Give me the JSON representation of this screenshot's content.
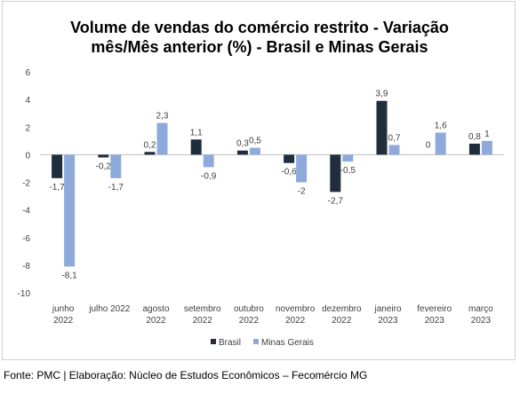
{
  "chart_data": {
    "type": "bar",
    "title_line1": "Volume de vendas do comércio restrito - Variação",
    "title_line2": "mês/Mês anterior (%) - Brasil e Minas Gerais",
    "categories": [
      [
        "junho",
        "2022"
      ],
      [
        "julho 2022"
      ],
      [
        "agosto",
        "2022"
      ],
      [
        "setembro",
        "2022"
      ],
      [
        "outubro",
        "2022"
      ],
      [
        "novembro",
        "2022"
      ],
      [
        "dezembro",
        "2022"
      ],
      [
        "janeiro",
        "2023"
      ],
      [
        "fevereiro",
        "2023"
      ],
      [
        "março",
        "2023"
      ]
    ],
    "series": [
      {
        "name": "Brasil",
        "color": "#1f2d3d",
        "values": [
          -1.7,
          -0.2,
          0.2,
          1.1,
          0.3,
          -0.6,
          -2.7,
          3.9,
          0,
          0.8
        ],
        "labels": [
          "-1,7",
          "-0,2",
          "0,2",
          "1,1",
          "0,3",
          "-0,6",
          "-2,7",
          "3,9",
          "0",
          "0,8"
        ]
      },
      {
        "name": "Minas Gerais",
        "color": "#8eaadb",
        "values": [
          -8.1,
          -1.7,
          2.3,
          -0.9,
          0.5,
          -2,
          -0.5,
          0.7,
          1.6,
          1
        ],
        "labels": [
          "-8,1",
          "-1,7",
          "2,3",
          "-0,9",
          "0,5",
          "-2",
          "-0,5",
          "0,7",
          "1,6",
          "1"
        ]
      }
    ],
    "ylim": [
      -10,
      6
    ],
    "yticks": [
      "6",
      "4",
      "2",
      "0",
      "-2",
      "-4",
      "-6",
      "-8",
      "-10"
    ],
    "ytick_values": [
      6,
      4,
      2,
      0,
      -2,
      -4,
      -6,
      -8,
      -10
    ],
    "grid": false,
    "legend_position": "bottom"
  },
  "footer": "Fonte: PMC | Elaboração: Núcleo de Estudos Econômicos – Fecomércio MG"
}
